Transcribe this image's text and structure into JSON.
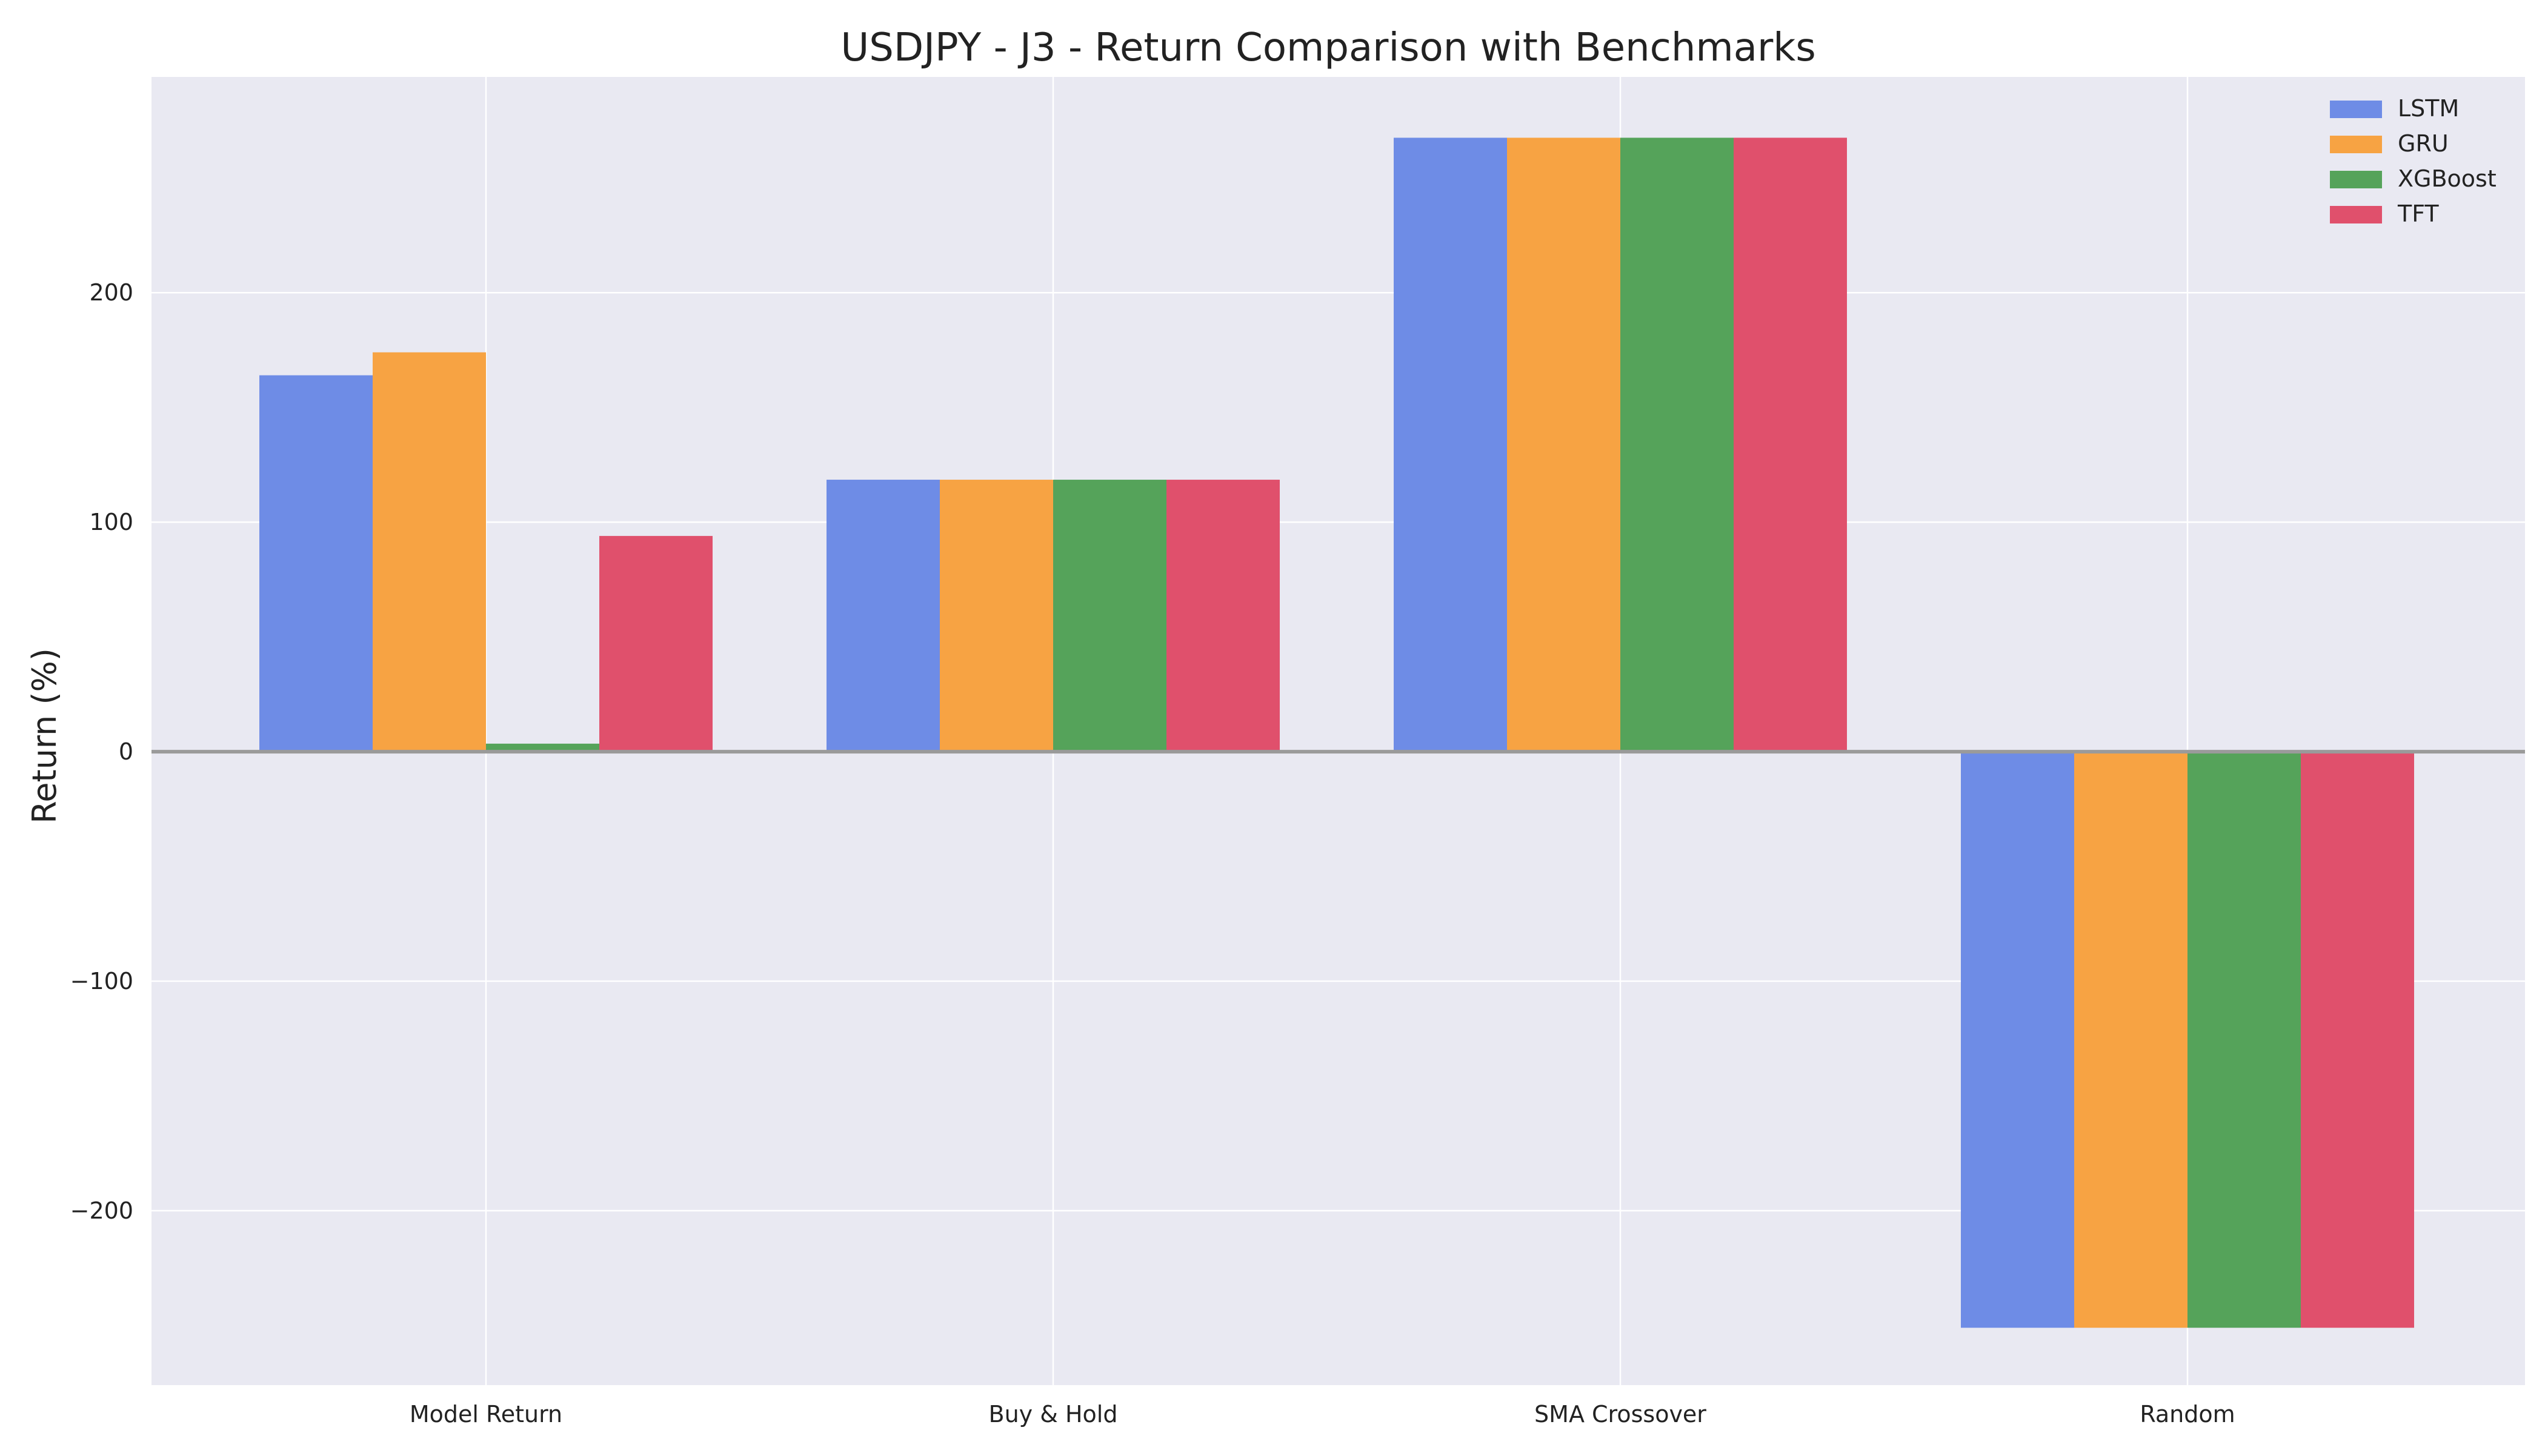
{
  "chart_data": {
    "type": "bar",
    "title": "USDJPY - J3 - Return Comparison with Benchmarks",
    "xlabel": "",
    "ylabel": "Return (%)",
    "categories": [
      "Model Return",
      "Buy & Hold",
      "SMA Crossover",
      "Random"
    ],
    "series": [
      {
        "name": "LSTM",
        "color": "#6e8ce6",
        "values": [
          164,
          118.5,
          267.5,
          -251
        ]
      },
      {
        "name": "GRU",
        "color": "#f7a343",
        "values": [
          174,
          118.5,
          267.5,
          -251
        ]
      },
      {
        "name": "XGBoost",
        "color": "#55a35a",
        "values": [
          3.5,
          118.5,
          267.5,
          -251
        ]
      },
      {
        "name": "TFT",
        "color": "#e0506c",
        "values": [
          94,
          118.5,
          267.5,
          -251
        ]
      }
    ],
    "ylim": [
      -276,
      294
    ],
    "yticks": [
      -200,
      -100,
      0,
      100,
      200
    ],
    "ytick_labels": [
      "−200",
      "−100",
      "0",
      "100",
      "200"
    ],
    "grid": true,
    "zero_line": true,
    "legend_position": "top-right",
    "background_color": "#e9e9f2",
    "zero_line_color": "#9a9a9a"
  }
}
